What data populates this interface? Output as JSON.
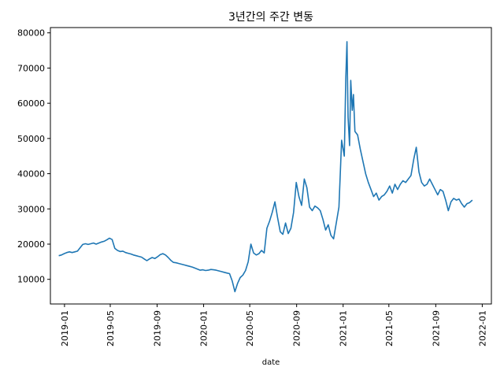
{
  "chart_data": {
    "type": "line",
    "title": "3년간의 주간 변동",
    "xlabel": "date",
    "ylabel": "",
    "xlim": [
      "2018-11-25",
      "2022-01-25"
    ],
    "ylim": [
      3000,
      81500
    ],
    "grid": false,
    "legend": "none",
    "x_ticks": [
      "2019-01",
      "2019-05",
      "2019-09",
      "2020-01",
      "2020-05",
      "2020-09",
      "2021-01",
      "2021-05",
      "2021-09",
      "2022-01"
    ],
    "y_ticks": [
      10000,
      20000,
      30000,
      40000,
      50000,
      60000,
      70000,
      80000
    ],
    "series": [
      {
        "color": "#1f77b4",
        "points": [
          [
            "2018-12-17",
            16700
          ],
          [
            "2018-12-24",
            16900
          ],
          [
            "2018-12-31",
            17300
          ],
          [
            "2019-01-07",
            17600
          ],
          [
            "2019-01-14",
            17800
          ],
          [
            "2019-01-21",
            17600
          ],
          [
            "2019-01-28",
            17800
          ],
          [
            "2019-02-04",
            18000
          ],
          [
            "2019-02-11",
            19000
          ],
          [
            "2019-02-18",
            19900
          ],
          [
            "2019-02-25",
            20100
          ],
          [
            "2019-03-04",
            19900
          ],
          [
            "2019-03-11",
            20100
          ],
          [
            "2019-03-18",
            20300
          ],
          [
            "2019-03-25",
            20000
          ],
          [
            "2019-04-01",
            20300
          ],
          [
            "2019-04-08",
            20600
          ],
          [
            "2019-04-15",
            20800
          ],
          [
            "2019-04-22",
            21200
          ],
          [
            "2019-04-29",
            21700
          ],
          [
            "2019-05-06",
            21300
          ],
          [
            "2019-05-13",
            18800
          ],
          [
            "2019-05-20",
            18200
          ],
          [
            "2019-05-27",
            17900
          ],
          [
            "2019-06-03",
            18000
          ],
          [
            "2019-06-10",
            17600
          ],
          [
            "2019-06-17",
            17400
          ],
          [
            "2019-06-24",
            17200
          ],
          [
            "2019-07-01",
            16900
          ],
          [
            "2019-07-08",
            16700
          ],
          [
            "2019-07-15",
            16500
          ],
          [
            "2019-07-22",
            16300
          ],
          [
            "2019-07-29",
            15800
          ],
          [
            "2019-08-05",
            15300
          ],
          [
            "2019-08-12",
            15800
          ],
          [
            "2019-08-19",
            16200
          ],
          [
            "2019-08-26",
            15900
          ],
          [
            "2019-09-02",
            16400
          ],
          [
            "2019-09-09",
            17000
          ],
          [
            "2019-09-16",
            17300
          ],
          [
            "2019-09-23",
            16900
          ],
          [
            "2019-09-30",
            16200
          ],
          [
            "2019-10-07",
            15400
          ],
          [
            "2019-10-14",
            14800
          ],
          [
            "2019-10-21",
            14700
          ],
          [
            "2019-10-28",
            14500
          ],
          [
            "2019-11-04",
            14300
          ],
          [
            "2019-11-11",
            14100
          ],
          [
            "2019-11-18",
            13900
          ],
          [
            "2019-11-25",
            13700
          ],
          [
            "2019-12-02",
            13500
          ],
          [
            "2019-12-09",
            13200
          ],
          [
            "2019-12-16",
            12900
          ],
          [
            "2019-12-23",
            12600
          ],
          [
            "2019-12-30",
            12700
          ],
          [
            "2020-01-06",
            12500
          ],
          [
            "2020-01-13",
            12600
          ],
          [
            "2020-01-20",
            12800
          ],
          [
            "2020-01-27",
            12700
          ],
          [
            "2020-02-03",
            12600
          ],
          [
            "2020-02-10",
            12400
          ],
          [
            "2020-02-17",
            12200
          ],
          [
            "2020-02-24",
            12000
          ],
          [
            "2020-03-02",
            11800
          ],
          [
            "2020-03-09",
            11600
          ],
          [
            "2020-03-16",
            9500
          ],
          [
            "2020-03-23",
            6500
          ],
          [
            "2020-03-30",
            8800
          ],
          [
            "2020-04-06",
            10500
          ],
          [
            "2020-04-13",
            11200
          ],
          [
            "2020-04-20",
            12500
          ],
          [
            "2020-04-27",
            15000
          ],
          [
            "2020-05-04",
            20000
          ],
          [
            "2020-05-11",
            17500
          ],
          [
            "2020-05-18",
            16900
          ],
          [
            "2020-05-25",
            17300
          ],
          [
            "2020-06-01",
            18200
          ],
          [
            "2020-06-08",
            17500
          ],
          [
            "2020-06-15",
            24500
          ],
          [
            "2020-06-22",
            26500
          ],
          [
            "2020-06-29",
            29000
          ],
          [
            "2020-07-06",
            32000
          ],
          [
            "2020-07-13",
            27500
          ],
          [
            "2020-07-20",
            23500
          ],
          [
            "2020-07-27",
            22800
          ],
          [
            "2020-08-03",
            26000
          ],
          [
            "2020-08-10",
            23000
          ],
          [
            "2020-08-17",
            24500
          ],
          [
            "2020-08-24",
            29000
          ],
          [
            "2020-08-31",
            37500
          ],
          [
            "2020-09-07",
            33500
          ],
          [
            "2020-09-14",
            31000
          ],
          [
            "2020-09-21",
            38500
          ],
          [
            "2020-09-28",
            36000
          ],
          [
            "2020-10-05",
            30500
          ],
          [
            "2020-10-12",
            29500
          ],
          [
            "2020-10-19",
            30800
          ],
          [
            "2020-10-26",
            30300
          ],
          [
            "2020-11-02",
            29500
          ],
          [
            "2020-11-09",
            27000
          ],
          [
            "2020-11-16",
            24000
          ],
          [
            "2020-11-23",
            25500
          ],
          [
            "2020-11-30",
            22500
          ],
          [
            "2020-12-07",
            21500
          ],
          [
            "2020-12-14",
            26000
          ],
          [
            "2020-12-21",
            30500
          ],
          [
            "2020-12-28",
            49500
          ],
          [
            "2021-01-04",
            45000
          ],
          [
            "2021-01-08",
            67000
          ],
          [
            "2021-01-11",
            77500
          ],
          [
            "2021-01-14",
            56000
          ],
          [
            "2021-01-18",
            48000
          ],
          [
            "2021-01-21",
            66500
          ],
          [
            "2021-01-25",
            58000
          ],
          [
            "2021-01-28",
            62500
          ],
          [
            "2021-02-01",
            52000
          ],
          [
            "2021-02-08",
            51000
          ],
          [
            "2021-02-15",
            47000
          ],
          [
            "2021-02-22",
            43500
          ],
          [
            "2021-03-01",
            40000
          ],
          [
            "2021-03-08",
            37500
          ],
          [
            "2021-03-15",
            35500
          ],
          [
            "2021-03-22",
            33500
          ],
          [
            "2021-03-29",
            34500
          ],
          [
            "2021-04-05",
            32500
          ],
          [
            "2021-04-12",
            33500
          ],
          [
            "2021-04-19",
            34000
          ],
          [
            "2021-04-26",
            35000
          ],
          [
            "2021-05-03",
            36500
          ],
          [
            "2021-05-10",
            34500
          ],
          [
            "2021-05-17",
            37000
          ],
          [
            "2021-05-24",
            35500
          ],
          [
            "2021-05-31",
            37000
          ],
          [
            "2021-06-07",
            38000
          ],
          [
            "2021-06-14",
            37500
          ],
          [
            "2021-06-21",
            38500
          ],
          [
            "2021-06-28",
            39500
          ],
          [
            "2021-07-05",
            44000
          ],
          [
            "2021-07-12",
            47500
          ],
          [
            "2021-07-19",
            40500
          ],
          [
            "2021-07-26",
            37500
          ],
          [
            "2021-08-02",
            36500
          ],
          [
            "2021-08-09",
            37000
          ],
          [
            "2021-08-16",
            38500
          ],
          [
            "2021-08-23",
            37000
          ],
          [
            "2021-08-30",
            35500
          ],
          [
            "2021-09-06",
            34000
          ],
          [
            "2021-09-13",
            35500
          ],
          [
            "2021-09-20",
            35000
          ],
          [
            "2021-09-27",
            32500
          ],
          [
            "2021-10-04",
            29500
          ],
          [
            "2021-10-11",
            32000
          ],
          [
            "2021-10-18",
            33000
          ],
          [
            "2021-10-25",
            32500
          ],
          [
            "2021-11-01",
            32800
          ],
          [
            "2021-11-08",
            31500
          ],
          [
            "2021-11-15",
            30500
          ],
          [
            "2021-11-22",
            31500
          ],
          [
            "2021-11-29",
            31800
          ],
          [
            "2021-12-06",
            32500
          ]
        ]
      }
    ]
  }
}
